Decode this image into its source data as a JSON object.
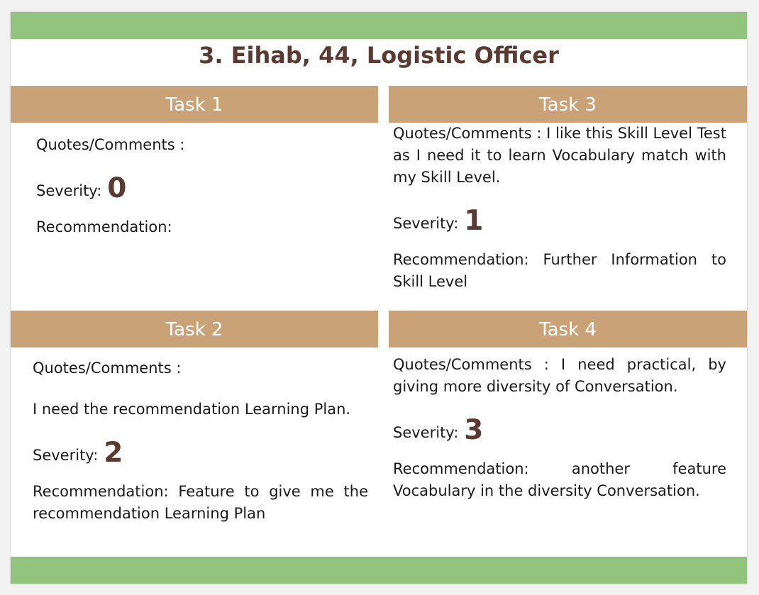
{
  "title": "3. Eihab, 44, Logistic Officer",
  "colors": {
    "band": "#93c47d",
    "header": "#c9a377",
    "title": "#5b3a31"
  },
  "tasks": [
    {
      "header": "Task 1",
      "quotes": "Quotes/Comments :",
      "severity_label": "Severity:",
      "severity": "0",
      "recommendation": "Recommendation:"
    },
    {
      "header": "Task 2",
      "quotes": "Quotes/Comments :",
      "comment": "I need the recommendation Learning Plan.",
      "severity_label": "Severity:",
      "severity": "2",
      "recommendation": "Recommendation: Feature to give me the recommendation Learning Plan"
    },
    {
      "header": "Task 3",
      "quotes": "Quotes/Comments : I like this Skill Level Test as I need it to learn Vocabulary match with my Skill Level.",
      "severity_label": "Severity:",
      "severity": "1",
      "recommendation": "Recommendation: Further Information to Skill Level"
    },
    {
      "header": "Task 4",
      "quotes": "Quotes/Comments : I need practical, by giving more diversity of Conversation.",
      "severity_label": "Severity:",
      "severity": "3",
      "recommendation": "Recommendation: another feature Vocabulary in the diversity Conversation."
    }
  ]
}
